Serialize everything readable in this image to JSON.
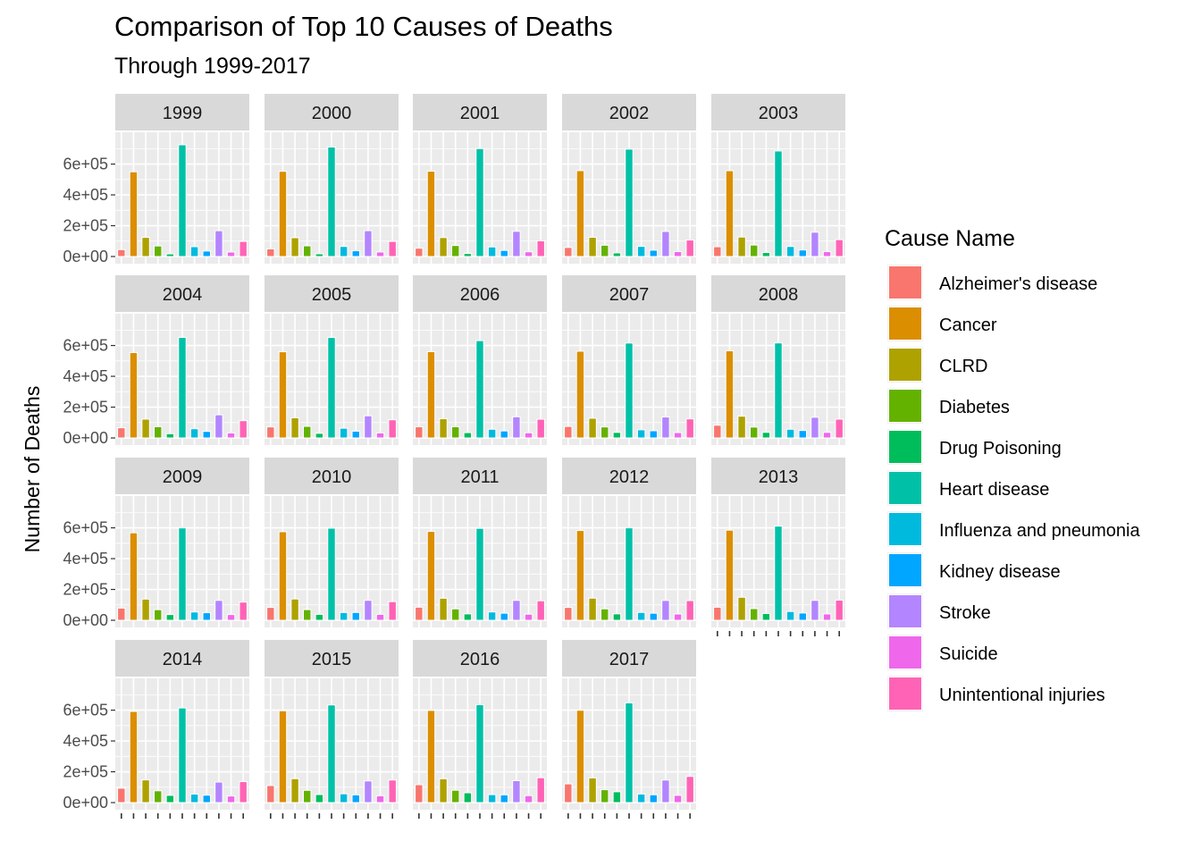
{
  "chart_data": {
    "type": "bar",
    "title": "Comparison of Top 10 Causes of Deaths",
    "subtitle": "Through 1999-2017",
    "xlabel": "",
    "ylabel": "Number of Deaths",
    "ylim": [
      0,
      760000
    ],
    "y_ticks": [
      0,
      200000,
      400000,
      600000
    ],
    "y_tick_labels": [
      "0e+00",
      "2e+05",
      "4e+05",
      "6e+05"
    ],
    "grid": true,
    "legend": {
      "title": "Cause Name",
      "position": "right"
    },
    "facet_ncol": 5,
    "categories": [
      "Alzheimer's disease",
      "Cancer",
      "CLRD",
      "Diabetes",
      "Drug Poisoning",
      "Heart disease",
      "Influenza and pneumonia",
      "Kidney disease",
      "Stroke",
      "Suicide",
      "Unintentional injuries"
    ],
    "colors": [
      "#F8766D",
      "#DB8E00",
      "#AEA200",
      "#64B200",
      "#00BD5C",
      "#00C1A7",
      "#00BADE",
      "#00A6FF",
      "#B385FF",
      "#EF67EB",
      "#FF63B6"
    ],
    "panels": [
      {
        "year": "1999",
        "values": [
          44536,
          549838,
          124181,
          68399,
          16849,
          725192,
          63730,
          35525,
          167366,
          29199,
          97860
        ]
      },
      {
        "year": "2000",
        "values": [
          49558,
          553091,
          122009,
          69301,
          17415,
          710760,
          65313,
          37251,
          167661,
          29350,
          97900
        ]
      },
      {
        "year": "2001",
        "values": [
          53852,
          553768,
          123013,
          71372,
          19394,
          700142,
          62034,
          39480,
          163538,
          30622,
          101537
        ]
      },
      {
        "year": "2002",
        "values": [
          58866,
          557271,
          124816,
          73249,
          23518,
          696947,
          65681,
          40974,
          162672,
          31655,
          106742
        ]
      },
      {
        "year": "2003",
        "values": [
          63457,
          556902,
          126382,
          74219,
          25785,
          685089,
          65163,
          42453,
          157689,
          31484,
          109277
        ]
      },
      {
        "year": "2004",
        "values": [
          65965,
          553888,
          121987,
          73138,
          27424,
          652486,
          59664,
          42480,
          150074,
          32439,
          112012
        ]
      },
      {
        "year": "2005",
        "values": [
          71599,
          559312,
          130933,
          75119,
          29813,
          652091,
          63001,
          43901,
          143579,
          32637,
          117809
        ]
      },
      {
        "year": "2006",
        "values": [
          72432,
          559888,
          124583,
          72449,
          34425,
          631636,
          56326,
          45344,
          137119,
          33300,
          121599
        ]
      },
      {
        "year": "2007",
        "values": [
          74632,
          562875,
          127924,
          71382,
          36010,
          616067,
          52717,
          46448,
          135952,
          34598,
          123706
        ]
      },
      {
        "year": "2008",
        "values": [
          82435,
          565469,
          141090,
          70553,
          36450,
          616828,
          56284,
          48237,
          134148,
          36035,
          121902
        ]
      },
      {
        "year": "2009",
        "values": [
          79003,
          567628,
          137353,
          68705,
          37004,
          599413,
          53692,
          48935,
          128842,
          36909,
          118021
        ]
      },
      {
        "year": "2010",
        "values": [
          83494,
          574743,
          138080,
          69071,
          38329,
          597689,
          50097,
          50476,
          129476,
          38364,
          120859
        ]
      },
      {
        "year": "2011",
        "values": [
          84974,
          576691,
          142943,
          73831,
          41340,
          596577,
          53826,
          45591,
          128932,
          39518,
          126438
        ]
      },
      {
        "year": "2012",
        "values": [
          83637,
          582623,
          143489,
          73932,
          41502,
          599711,
          50636,
          45622,
          128546,
          40600,
          127792
        ]
      },
      {
        "year": "2013",
        "values": [
          84767,
          584881,
          149205,
          75578,
          43982,
          611105,
          56979,
          47112,
          128978,
          41149,
          130557
        ]
      },
      {
        "year": "2014",
        "values": [
          93541,
          591700,
          147101,
          76488,
          47055,
          614348,
          55227,
          48146,
          133103,
          42773,
          136053
        ]
      },
      {
        "year": "2015",
        "values": [
          110561,
          595930,
          155041,
          79535,
          52404,
          633842,
          57062,
          49959,
          140323,
          44193,
          146571
        ]
      },
      {
        "year": "2016",
        "values": [
          116103,
          598038,
          154596,
          80058,
          63632,
          635260,
          51537,
          50046,
          142142,
          44965,
          161374
        ]
      },
      {
        "year": "2017",
        "values": [
          121404,
          599108,
          160201,
          83564,
          70237,
          647457,
          55672,
          50633,
          146383,
          47173,
          169936
        ]
      }
    ]
  }
}
